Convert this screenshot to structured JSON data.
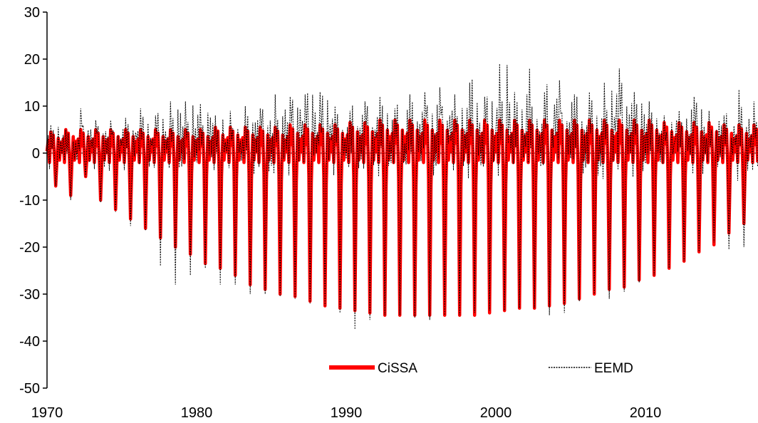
{
  "chart_data": {
    "type": "line",
    "title": "",
    "xlabel": "",
    "ylabel": "",
    "xlim": [
      1970,
      2018.5
    ],
    "ylim": [
      -50,
      30
    ],
    "x_ticks": [
      "1970",
      "1980",
      "1990",
      "2000",
      "2010"
    ],
    "y_ticks": [
      "30",
      "20",
      "10",
      "0",
      "-10",
      "-20",
      "-30",
      "-40",
      "-50"
    ],
    "grid": false,
    "legend_position": "bottom",
    "sampling": "monthly, one seasonal cycle per year",
    "series": [
      {
        "name": "CiSSA",
        "color": "#ff0000",
        "style": "solid-thick",
        "annual_minimum": [
          -7,
          -9,
          -5,
          -10,
          -12,
          -14,
          -16,
          -18,
          -20,
          -21.5,
          -23.5,
          -24.5,
          -26,
          -28,
          -29,
          -30,
          -30.5,
          -31.5,
          -32.5,
          -33,
          -33.5,
          -34,
          -34.5,
          -34.5,
          -34.5,
          -34.5,
          -34.5,
          -34.5,
          -34.5,
          -34,
          -33.5,
          -33,
          -33,
          -32.5,
          -32,
          -31,
          -30,
          -29,
          -28.5,
          -27,
          -26,
          -24.5,
          -23,
          -21,
          -19.5,
          -17,
          -15,
          -13,
          -9.5
        ],
        "annual_maximum": [
          4.5,
          5,
          5,
          5,
          5,
          5,
          5,
          5,
          5,
          5,
          5,
          5.5,
          5.5,
          5.5,
          5.5,
          5.5,
          6,
          6,
          6,
          6,
          6.5,
          6.5,
          7,
          7,
          7,
          7,
          7,
          7,
          7,
          7,
          7,
          7,
          7,
          7,
          7,
          7,
          7,
          7,
          7,
          7,
          7,
          6.5,
          6.5,
          6.5,
          6.5,
          6,
          6,
          6,
          6
        ]
      },
      {
        "name": "EEMD",
        "color": "#000000",
        "style": "dotted-thin",
        "annual_minimum": [
          -7,
          -10,
          -5,
          -10.5,
          -12.5,
          -15.5,
          -16.5,
          -24,
          -28,
          -26,
          -24.5,
          -28,
          -28,
          -30,
          -30,
          -30.5,
          -31,
          -32,
          -32.5,
          -34,
          -37.5,
          -35.5,
          -34.5,
          -34.5,
          -35,
          -35.5,
          -34.5,
          -34.5,
          -34,
          -33.5,
          -33.5,
          -33,
          -33,
          -34.5,
          -34,
          -31.5,
          -30,
          -31,
          -29.5,
          -27.5,
          -26,
          -24.5,
          -23,
          -21,
          -19,
          -20.5,
          -20,
          -18.5,
          -16.5
        ],
        "annual_maximum": [
          6,
          5,
          9.5,
          7,
          7,
          7.5,
          9.5,
          8,
          11,
          11,
          10.5,
          8,
          9,
          10,
          9.5,
          12.5,
          12,
          12.5,
          13,
          10,
          9,
          11,
          12,
          9.5,
          12.5,
          13,
          14,
          12.5,
          15,
          12,
          19,
          13,
          18,
          13,
          15.5,
          12.5,
          13,
          15,
          18,
          13,
          11,
          8,
          9,
          12,
          9,
          8,
          13.5,
          11,
          11
        ]
      }
    ]
  }
}
